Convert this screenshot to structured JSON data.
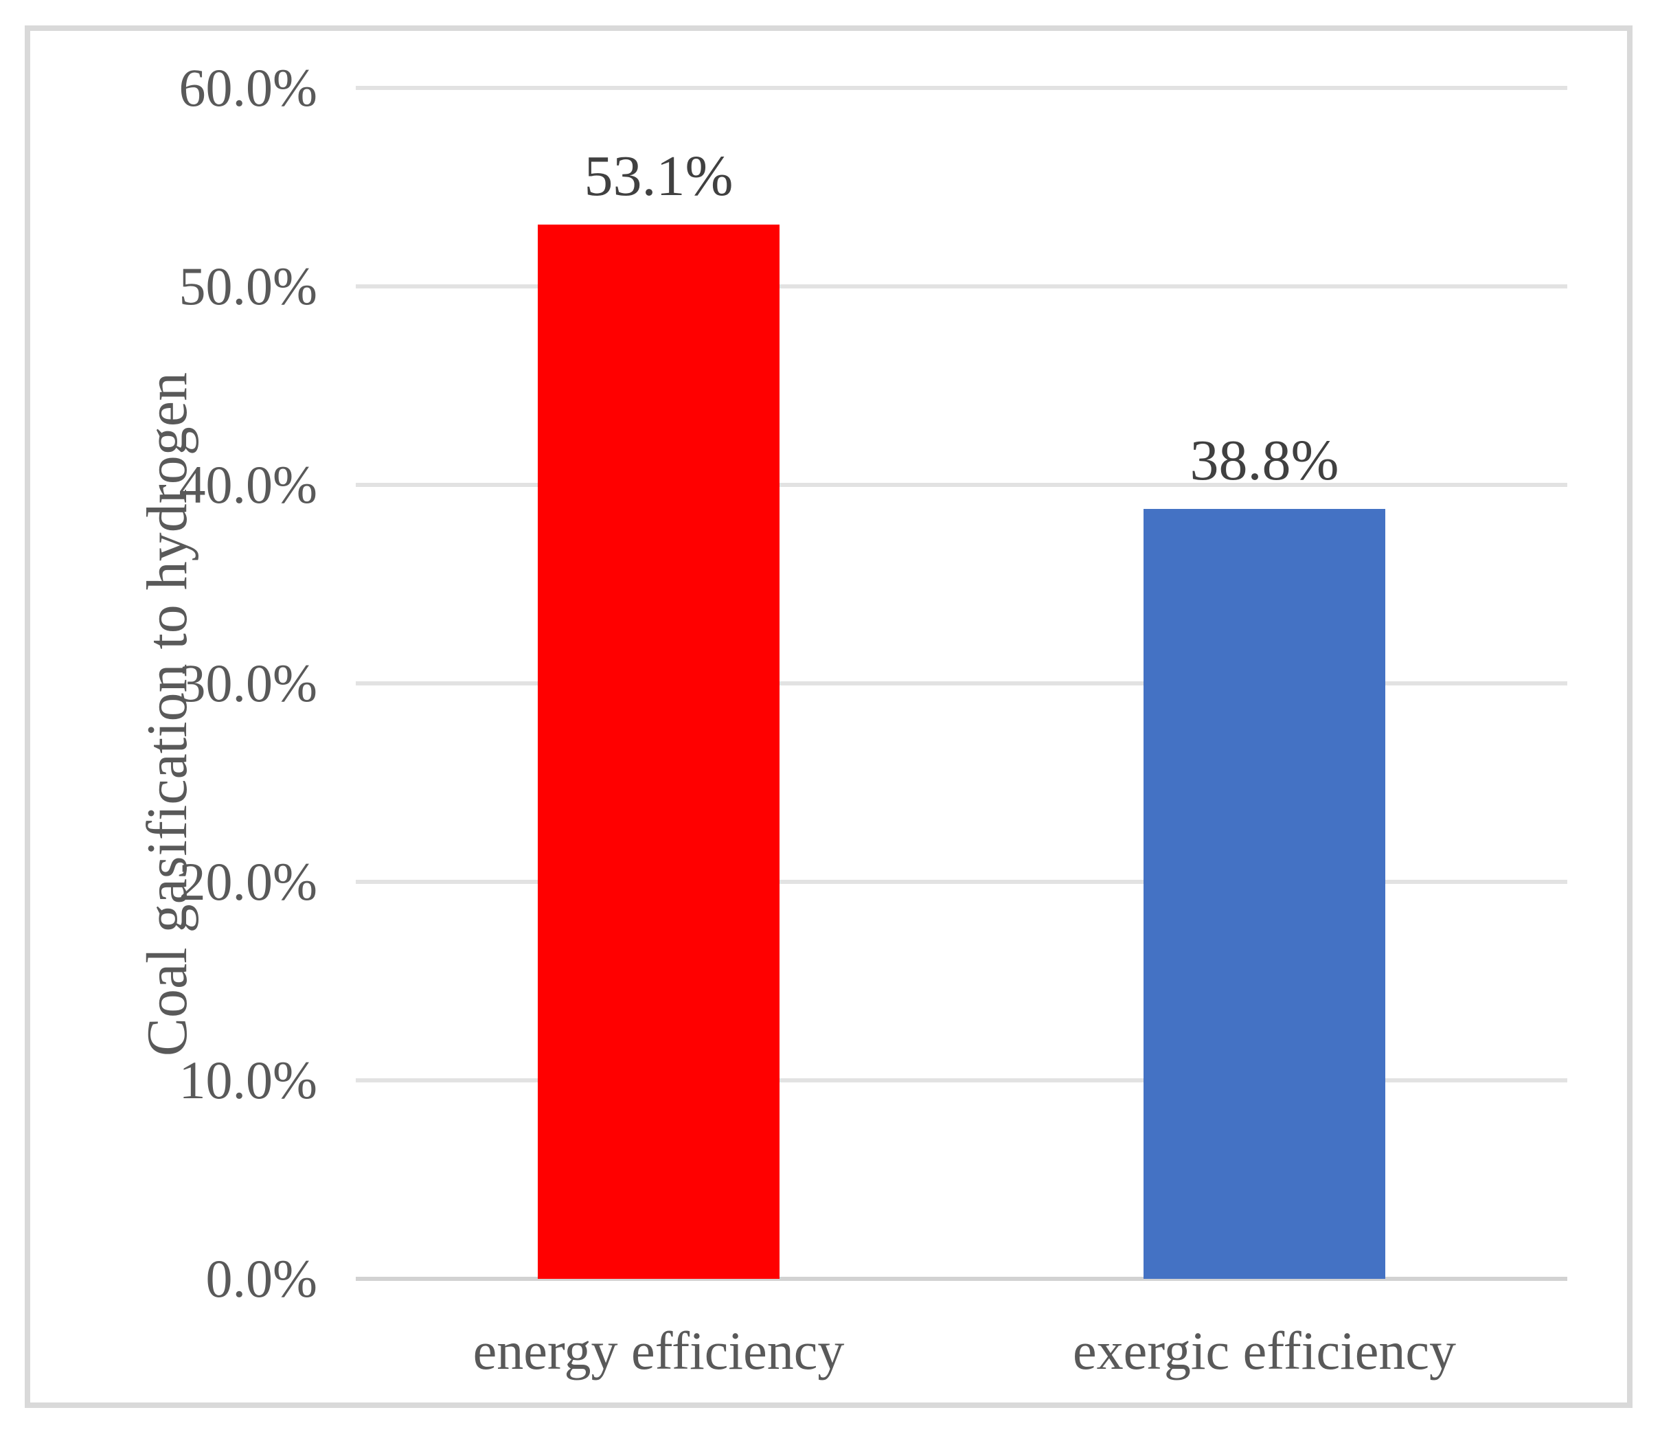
{
  "chart_data": {
    "type": "bar",
    "title": "",
    "categories": [
      "energy efficiency",
      "exergic efficiency"
    ],
    "values": [
      53.1,
      38.8
    ],
    "data_labels": [
      "53.1%",
      "38.8%"
    ],
    "bar_colors": [
      "#ff0000",
      "#4472c4"
    ],
    "ylabel": "Coal gasification to hydrogen",
    "xlabel": "",
    "ylim": [
      0,
      60
    ],
    "ytick_labels": [
      "0.0%",
      "10.0%",
      "20.0%",
      "30.0%",
      "40.0%",
      "50.0%",
      "60.0%"
    ],
    "grid": "horizontal gridlines on",
    "legend": "none"
  },
  "colors": {
    "text": "#595959",
    "data_label_text": "#404040",
    "gridline": "#e2e2e2",
    "axis_line": "#d2d2d2",
    "frame_border": "#d9d9d9",
    "background": "#ffffff"
  }
}
